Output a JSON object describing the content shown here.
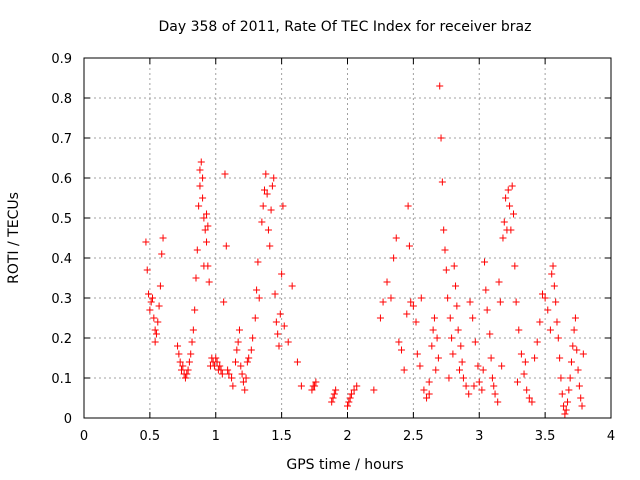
{
  "chart_data": {
    "type": "scatter",
    "title": "Day 358 of 2011, Rate Of TEC Index for receiver braz",
    "xlabel": "GPS time / hours",
    "ylabel": "ROTI / TECUs",
    "xlim": [
      0,
      4
    ],
    "ylim": [
      0,
      0.9
    ],
    "xticks": [
      0,
      0.5,
      1,
      1.5,
      2,
      2.5,
      3,
      3.5,
      4
    ],
    "yticks": [
      0,
      0.1,
      0.2,
      0.3,
      0.4,
      0.5,
      0.6,
      0.7,
      0.8,
      0.9
    ],
    "xtick_labels": [
      "0",
      "0.5",
      "1",
      "1.5",
      "2",
      "2.5",
      "3",
      "3.5",
      "4"
    ],
    "ytick_labels": [
      "0",
      "0.1",
      "0.2",
      "0.3",
      "0.4",
      "0.5",
      "0.6",
      "0.7",
      "0.8",
      "0.9"
    ],
    "grid": true,
    "marker": "+",
    "series": [
      {
        "name": "ROTI",
        "color": "#ff0000",
        "points": [
          [
            0.47,
            0.44
          ],
          [
            0.48,
            0.37
          ],
          [
            0.49,
            0.31
          ],
          [
            0.5,
            0.27
          ],
          [
            0.51,
            0.29
          ],
          [
            0.52,
            0.3
          ],
          [
            0.53,
            0.25
          ],
          [
            0.54,
            0.22
          ],
          [
            0.54,
            0.19
          ],
          [
            0.55,
            0.21
          ],
          [
            0.56,
            0.24
          ],
          [
            0.57,
            0.28
          ],
          [
            0.58,
            0.33
          ],
          [
            0.59,
            0.41
          ],
          [
            0.6,
            0.45
          ],
          [
            0.71,
            0.18
          ],
          [
            0.72,
            0.16
          ],
          [
            0.73,
            0.14
          ],
          [
            0.74,
            0.12
          ],
          [
            0.75,
            0.13
          ],
          [
            0.76,
            0.11
          ],
          [
            0.77,
            0.1
          ],
          [
            0.78,
            0.11
          ],
          [
            0.79,
            0.12
          ],
          [
            0.8,
            0.14
          ],
          [
            0.81,
            0.16
          ],
          [
            0.82,
            0.19
          ],
          [
            0.83,
            0.22
          ],
          [
            0.84,
            0.27
          ],
          [
            0.85,
            0.35
          ],
          [
            0.86,
            0.42
          ],
          [
            0.87,
            0.53
          ],
          [
            0.88,
            0.58
          ],
          [
            0.88,
            0.62
          ],
          [
            0.89,
            0.64
          ],
          [
            0.9,
            0.6
          ],
          [
            0.9,
            0.55
          ],
          [
            0.91,
            0.5
          ],
          [
            0.92,
            0.47
          ],
          [
            0.93,
            0.44
          ],
          [
            0.94,
            0.38
          ],
          [
            0.95,
            0.34
          ],
          [
            0.93,
            0.51
          ],
          [
            0.94,
            0.48
          ],
          [
            0.91,
            0.38
          ],
          [
            0.96,
            0.13
          ],
          [
            0.97,
            0.15
          ],
          [
            0.98,
            0.14
          ],
          [
            0.99,
            0.13
          ],
          [
            1.0,
            0.15
          ],
          [
            1.01,
            0.14
          ],
          [
            1.02,
            0.12
          ],
          [
            1.03,
            0.13
          ],
          [
            1.04,
            0.12
          ],
          [
            1.05,
            0.11
          ],
          [
            1.06,
            0.29
          ],
          [
            1.07,
            0.61
          ],
          [
            1.08,
            0.43
          ],
          [
            1.09,
            0.12
          ],
          [
            1.1,
            0.11
          ],
          [
            1.12,
            0.1
          ],
          [
            1.13,
            0.08
          ],
          [
            1.15,
            0.14
          ],
          [
            1.16,
            0.17
          ],
          [
            1.17,
            0.19
          ],
          [
            1.18,
            0.22
          ],
          [
            1.19,
            0.13
          ],
          [
            1.2,
            0.11
          ],
          [
            1.21,
            0.09
          ],
          [
            1.22,
            0.07
          ],
          [
            1.23,
            0.1
          ],
          [
            1.24,
            0.14
          ],
          [
            1.25,
            0.15
          ],
          [
            1.27,
            0.17
          ],
          [
            1.28,
            0.2
          ],
          [
            1.3,
            0.25
          ],
          [
            1.31,
            0.32
          ],
          [
            1.32,
            0.39
          ],
          [
            1.33,
            0.3
          ],
          [
            1.35,
            0.49
          ],
          [
            1.36,
            0.53
          ],
          [
            1.37,
            0.57
          ],
          [
            1.38,
            0.61
          ],
          [
            1.39,
            0.56
          ],
          [
            1.4,
            0.47
          ],
          [
            1.41,
            0.43
          ],
          [
            1.42,
            0.52
          ],
          [
            1.43,
            0.58
          ],
          [
            1.44,
            0.6
          ],
          [
            1.45,
            0.31
          ],
          [
            1.46,
            0.24
          ],
          [
            1.47,
            0.21
          ],
          [
            1.48,
            0.18
          ],
          [
            1.49,
            0.26
          ],
          [
            1.5,
            0.36
          ],
          [
            1.51,
            0.53
          ],
          [
            1.52,
            0.23
          ],
          [
            1.55,
            0.19
          ],
          [
            1.58,
            0.33
          ],
          [
            1.62,
            0.14
          ],
          [
            1.65,
            0.08
          ],
          [
            1.73,
            0.07
          ],
          [
            1.74,
            0.08
          ],
          [
            1.75,
            0.08
          ],
          [
            1.76,
            0.09
          ],
          [
            1.88,
            0.04
          ],
          [
            1.89,
            0.05
          ],
          [
            1.9,
            0.06
          ],
          [
            1.91,
            0.07
          ],
          [
            2.0,
            0.03
          ],
          [
            2.01,
            0.04
          ],
          [
            2.02,
            0.05
          ],
          [
            2.03,
            0.06
          ],
          [
            2.05,
            0.07
          ],
          [
            2.07,
            0.08
          ],
          [
            2.2,
            0.07
          ],
          [
            2.25,
            0.25
          ],
          [
            2.27,
            0.29
          ],
          [
            2.3,
            0.34
          ],
          [
            2.33,
            0.3
          ],
          [
            2.35,
            0.4
          ],
          [
            2.37,
            0.45
          ],
          [
            2.39,
            0.19
          ],
          [
            2.41,
            0.17
          ],
          [
            2.43,
            0.12
          ],
          [
            2.45,
            0.26
          ],
          [
            2.46,
            0.53
          ],
          [
            2.47,
            0.43
          ],
          [
            2.48,
            0.29
          ],
          [
            2.5,
            0.28
          ],
          [
            2.52,
            0.24
          ],
          [
            2.53,
            0.16
          ],
          [
            2.55,
            0.13
          ],
          [
            2.56,
            0.3
          ],
          [
            2.58,
            0.07
          ],
          [
            2.6,
            0.05
          ],
          [
            2.62,
            0.06
          ],
          [
            2.64,
            0.18
          ],
          [
            2.65,
            0.22
          ],
          [
            2.66,
            0.25
          ],
          [
            2.68,
            0.2
          ],
          [
            2.69,
            0.15
          ],
          [
            2.7,
            0.83
          ],
          [
            2.71,
            0.7
          ],
          [
            2.72,
            0.59
          ],
          [
            2.73,
            0.47
          ],
          [
            2.74,
            0.42
          ],
          [
            2.75,
            0.37
          ],
          [
            2.76,
            0.3
          ],
          [
            2.78,
            0.25
          ],
          [
            2.79,
            0.2
          ],
          [
            2.8,
            0.16
          ],
          [
            2.81,
            0.38
          ],
          [
            2.82,
            0.33
          ],
          [
            2.83,
            0.28
          ],
          [
            2.84,
            0.22
          ],
          [
            2.86,
            0.18
          ],
          [
            2.87,
            0.14
          ],
          [
            2.88,
            0.1
          ],
          [
            2.9,
            0.08
          ],
          [
            2.92,
            0.06
          ],
          [
            2.93,
            0.29
          ],
          [
            2.95,
            0.25
          ],
          [
            2.97,
            0.19
          ],
          [
            2.99,
            0.13
          ],
          [
            3.0,
            0.09
          ],
          [
            3.02,
            0.07
          ],
          [
            3.04,
            0.39
          ],
          [
            3.05,
            0.32
          ],
          [
            3.06,
            0.27
          ],
          [
            3.08,
            0.21
          ],
          [
            3.09,
            0.15
          ],
          [
            3.1,
            0.1
          ],
          [
            3.12,
            0.06
          ],
          [
            3.14,
            0.04
          ],
          [
            3.15,
            0.34
          ],
          [
            3.16,
            0.29
          ],
          [
            3.18,
            0.45
          ],
          [
            3.19,
            0.49
          ],
          [
            3.2,
            0.55
          ],
          [
            3.21,
            0.47
          ],
          [
            3.22,
            0.57
          ],
          [
            3.23,
            0.53
          ],
          [
            3.24,
            0.47
          ],
          [
            3.25,
            0.58
          ],
          [
            3.26,
            0.51
          ],
          [
            3.27,
            0.38
          ],
          [
            3.28,
            0.29
          ],
          [
            3.3,
            0.22
          ],
          [
            3.32,
            0.16
          ],
          [
            3.34,
            0.11
          ],
          [
            3.36,
            0.07
          ],
          [
            3.38,
            0.05
          ],
          [
            3.4,
            0.04
          ],
          [
            3.42,
            0.15
          ],
          [
            3.44,
            0.19
          ],
          [
            3.46,
            0.24
          ],
          [
            3.48,
            0.31
          ],
          [
            3.5,
            0.3
          ],
          [
            3.52,
            0.27
          ],
          [
            3.54,
            0.22
          ],
          [
            3.55,
            0.36
          ],
          [
            3.56,
            0.38
          ],
          [
            3.57,
            0.33
          ],
          [
            3.58,
            0.29
          ],
          [
            3.59,
            0.24
          ],
          [
            3.6,
            0.2
          ],
          [
            3.61,
            0.15
          ],
          [
            3.62,
            0.1
          ],
          [
            3.63,
            0.06
          ],
          [
            3.64,
            0.03
          ],
          [
            3.65,
            0.01
          ],
          [
            3.66,
            0.02
          ],
          [
            3.67,
            0.04
          ],
          [
            3.68,
            0.07
          ],
          [
            3.69,
            0.1
          ],
          [
            3.7,
            0.14
          ],
          [
            3.71,
            0.18
          ],
          [
            3.72,
            0.22
          ],
          [
            3.73,
            0.25
          ],
          [
            3.74,
            0.17
          ],
          [
            3.75,
            0.12
          ],
          [
            3.76,
            0.08
          ],
          [
            3.77,
            0.05
          ],
          [
            3.78,
            0.03
          ],
          [
            3.79,
            0.16
          ],
          [
            2.62,
            0.09
          ],
          [
            2.67,
            0.12
          ],
          [
            2.77,
            0.1
          ],
          [
            2.85,
            0.12
          ],
          [
            2.96,
            0.08
          ],
          [
            3.03,
            0.12
          ],
          [
            3.11,
            0.08
          ],
          [
            3.17,
            0.13
          ],
          [
            3.29,
            0.09
          ],
          [
            3.35,
            0.14
          ]
        ]
      }
    ]
  }
}
